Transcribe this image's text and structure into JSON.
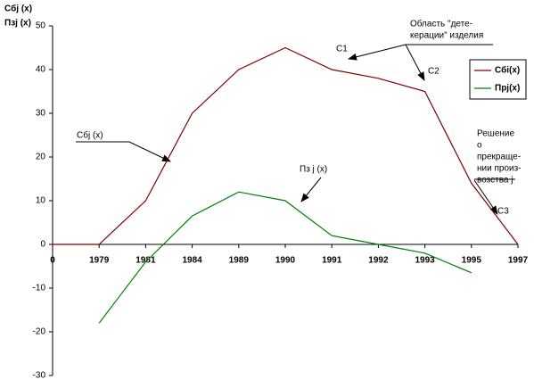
{
  "chart_data": {
    "type": "line",
    "y_axis_label": [
      "Сбj (x)",
      "Пзj (x)"
    ],
    "categories": [
      "0",
      "1979",
      "1981",
      "1984",
      "1989",
      "1990",
      "1991",
      "1992",
      "1993",
      "1995",
      "1997"
    ],
    "series": [
      {
        "name": "Сбі(x)",
        "color": "#800000",
        "values": [
          0,
          0,
          10,
          30,
          40,
          45,
          40,
          38,
          35,
          14,
          0
        ]
      },
      {
        "name": "Прj(x)",
        "color": "#008000",
        "values": [
          null,
          -18,
          -4,
          6.5,
          12,
          10,
          2,
          0,
          -2,
          -6.5,
          null
        ]
      }
    ],
    "ylim": [
      -30,
      50
    ],
    "yticks": [
      -30,
      -20,
      -10,
      0,
      10,
      20,
      30,
      40,
      50
    ],
    "grid": false,
    "legend": "right",
    "annotations": [
      {
        "lines": [
          "Область  \"дете-",
          "керации\" изделия"
        ]
      },
      {
        "lines": [
          "C1"
        ]
      },
      {
        "lines": [
          "C2"
        ]
      },
      {
        "lines": [
          "Сбj (x)"
        ]
      },
      {
        "lines": [
          "Пз j (x)"
        ]
      },
      {
        "lines": [
          "Решение",
          "о",
          "прекраще-",
          "нии произ-",
          "возства j"
        ]
      },
      {
        "lines": [
          "C3"
        ]
      }
    ]
  }
}
